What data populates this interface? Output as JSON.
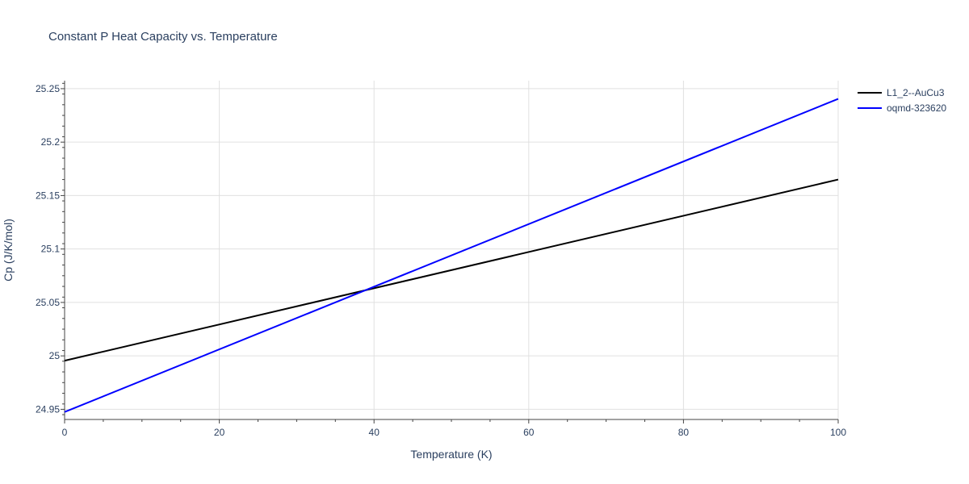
{
  "chart_data": {
    "type": "line",
    "title": "Constant P Heat Capacity vs. Temperature",
    "xlabel": "Temperature (K)",
    "ylabel": "Cp (J/K/mol)",
    "xlim": [
      0,
      100
    ],
    "ylim": [
      24.9405,
      25.2575
    ],
    "x_ticks": [
      0,
      20,
      40,
      60,
      80,
      100
    ],
    "x_tick_labels": [
      "0",
      "20",
      "40",
      "60",
      "80",
      "100"
    ],
    "y_ticks": [
      24.95,
      25.0,
      25.05,
      25.1,
      25.15,
      25.2,
      25.25
    ],
    "y_tick_labels": [
      "24.95",
      "25",
      "25.05",
      "25.1",
      "25.15",
      "25.2",
      "25.25"
    ],
    "grid": true,
    "legend_position": "top-right outside",
    "series": [
      {
        "name": "L1_2--AuCu3",
        "color": "#000000",
        "x": [
          0,
          100
        ],
        "y": [
          24.9955,
          25.165
        ]
      },
      {
        "name": "oqmd-323620",
        "color": "#0000ff",
        "x": [
          0,
          100
        ],
        "y": [
          24.9475,
          25.2405
        ]
      }
    ]
  }
}
